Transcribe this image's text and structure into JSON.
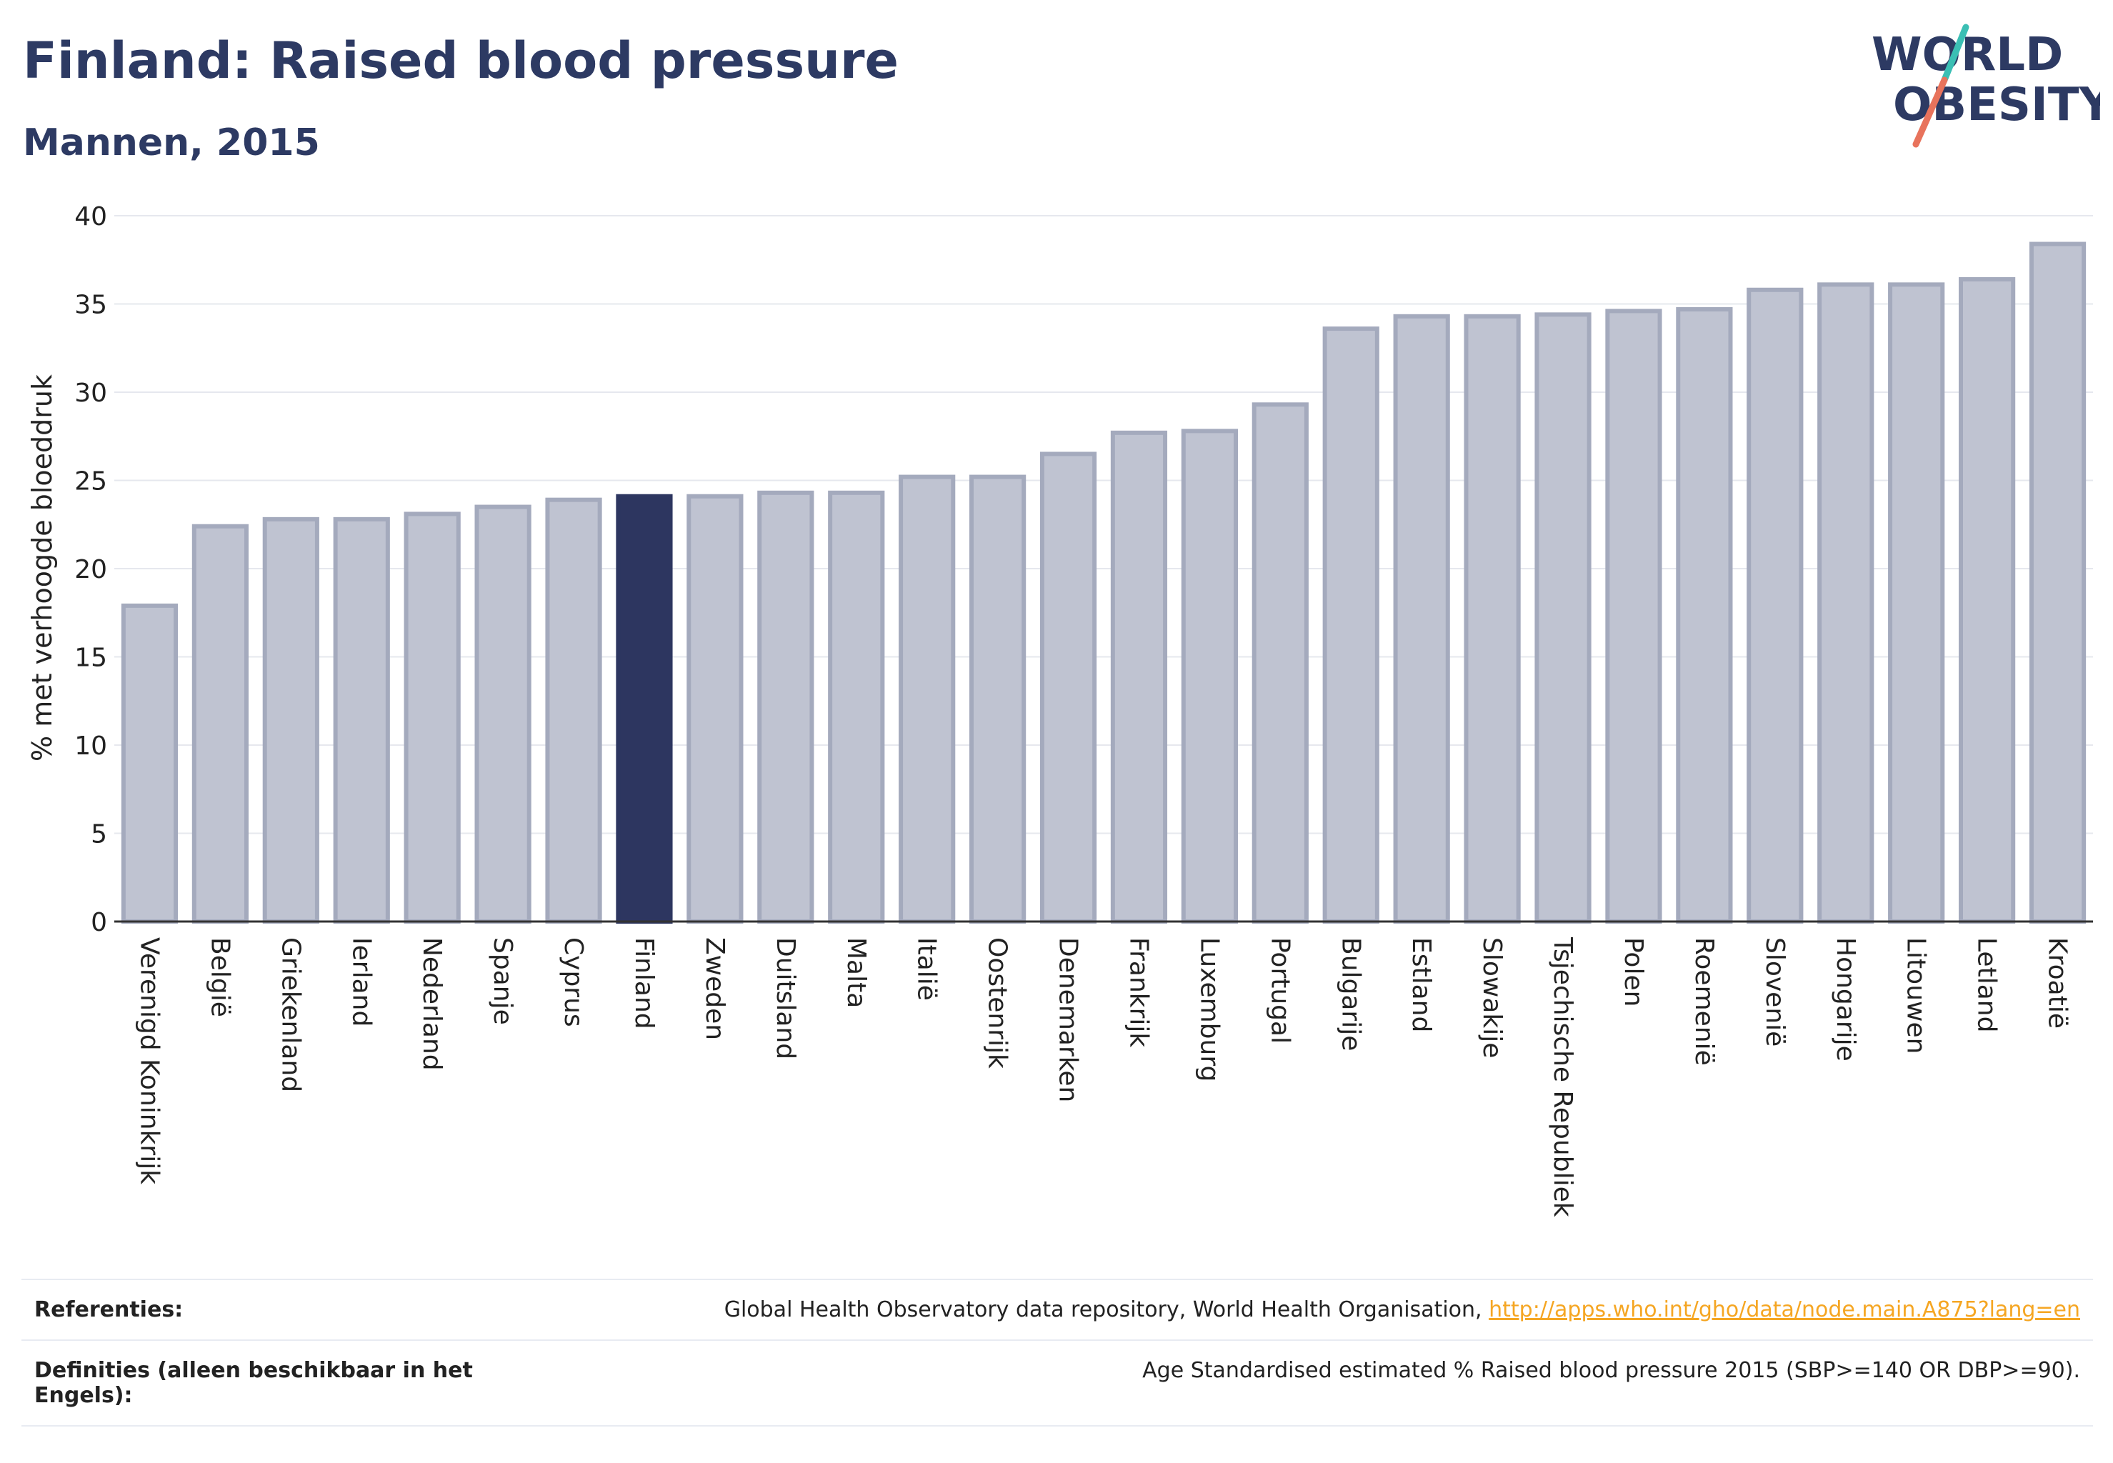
{
  "header": {
    "title": "Finland: Raised blood pressure",
    "subtitle": "Mannen, 2015",
    "logo_line1": "WORLD",
    "logo_line2": "OBESITY"
  },
  "chart_data": {
    "type": "bar",
    "title": "Finland: Raised blood pressure",
    "subtitle": "Mannen, 2015",
    "ylabel": "% met verhoogde bloeddruk",
    "ylim": [
      0,
      40
    ],
    "yticks": [
      0,
      5,
      10,
      15,
      20,
      25,
      30,
      35,
      40
    ],
    "grid": true,
    "highlight": "Finland",
    "colors": {
      "bar": "#bfc3d1",
      "bar_border": "#a4aabd",
      "highlight": "#2d3660",
      "axis": "#333333",
      "grid": "#e6e8ee"
    },
    "categories": [
      "Verenigd Koninkrijk",
      "België",
      "Griekenland",
      "Ierland",
      "Nederland",
      "Spanje",
      "Cyprus",
      "Finland",
      "Zweden",
      "Duitsland",
      "Malta",
      "Italië",
      "Oostenrijk",
      "Denemarken",
      "Frankrijk",
      "Luxemburg",
      "Portugal",
      "Bulgarije",
      "Estland",
      "Slowakije",
      "Tsjechische Republiek",
      "Polen",
      "Roemenië",
      "Slovenië",
      "Hongarije",
      "Litouwen",
      "Letland",
      "Kroatië"
    ],
    "values": [
      17.9,
      22.4,
      22.8,
      22.8,
      23.1,
      23.5,
      23.9,
      24.1,
      24.1,
      24.3,
      24.3,
      25.2,
      25.2,
      26.5,
      27.7,
      27.8,
      29.3,
      33.6,
      34.3,
      34.3,
      34.4,
      34.6,
      34.7,
      35.8,
      36.1,
      36.1,
      36.4,
      38.4
    ]
  },
  "info": {
    "ref_label": "Referenties:",
    "ref_text": "Global Health Observatory data repository, World Health Organisation,",
    "ref_link": "http://apps.who.int/gho/data/node.main.A875?lang=en",
    "def_label": "Definities (alleen beschikbaar in het Engels):",
    "def_text": "Age Standardised estimated % Raised blood pressure 2015 (SBP>=140 OR DBP>=90)."
  }
}
